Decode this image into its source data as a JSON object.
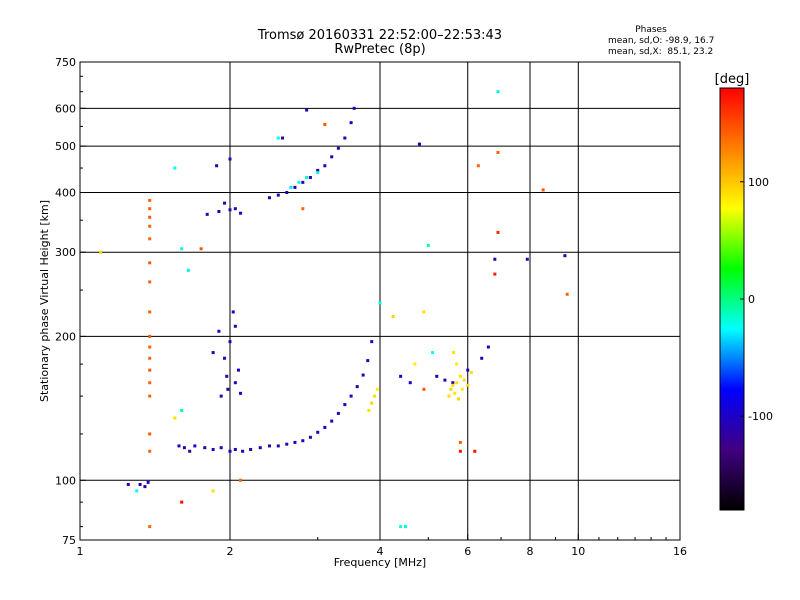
{
  "chart_data": {
    "type": "scatter",
    "title": "Tromsø 20160331 22:52:00–22:53:43",
    "subtitle": "RwPretec (8p)",
    "xlabel": "Frequency [MHz]",
    "ylabel": "Stationary phase Virtual Height [km]",
    "x_scale": "log",
    "y_scale": "log",
    "xlim": [
      1,
      16
    ],
    "ylim": [
      75,
      750
    ],
    "x_ticks": [
      1,
      2,
      4,
      6,
      8,
      10,
      16
    ],
    "y_ticks": [
      75,
      100,
      200,
      300,
      400,
      500,
      600,
      750
    ],
    "x_grid_lines": [
      2,
      4,
      6,
      8,
      10
    ],
    "y_grid_lines": [
      100,
      200,
      300,
      400,
      500,
      600
    ],
    "grid": true,
    "legend": {
      "title": "Phases",
      "lines": [
        "mean, sd,O: -98.9, 16.7",
        "mean, sd,X:  85.1, 23.2"
      ]
    },
    "colorbar": {
      "label": "[deg]",
      "range": [
        -180,
        180
      ],
      "ticks": [
        100,
        0,
        -100
      ],
      "colors": [
        "#ff0000",
        "#ff8000",
        "#ffff00",
        "#00ff00",
        "#00ffff",
        "#0000ff",
        "#400080",
        "#000000"
      ]
    },
    "series": [
      {
        "points": [
          [
            1.25,
            98,
            -110
          ],
          [
            1.32,
            98,
            -105
          ],
          [
            1.35,
            97,
            -110
          ],
          [
            1.37,
            99,
            -100
          ],
          [
            1.58,
            118,
            -110
          ],
          [
            1.62,
            117,
            -105
          ],
          [
            1.66,
            115,
            -115
          ],
          [
            1.7,
            118,
            -100
          ],
          [
            1.78,
            117,
            -110
          ],
          [
            1.85,
            116,
            -105
          ],
          [
            1.92,
            117,
            -110
          ],
          [
            2.0,
            115,
            -100
          ],
          [
            2.05,
            116,
            -110
          ],
          [
            2.12,
            115,
            -105
          ],
          [
            2.2,
            116,
            -110
          ],
          [
            2.3,
            117,
            -100
          ],
          [
            2.4,
            118,
            -110
          ],
          [
            2.5,
            118,
            -105
          ],
          [
            2.6,
            119,
            -110
          ],
          [
            2.7,
            120,
            -100
          ],
          [
            2.8,
            121,
            -110
          ],
          [
            2.9,
            123,
            -105
          ],
          [
            3.0,
            126,
            -110
          ],
          [
            3.1,
            129,
            -100
          ],
          [
            3.2,
            133,
            -110
          ],
          [
            3.3,
            138,
            -105
          ],
          [
            3.4,
            144,
            -110
          ],
          [
            3.5,
            150,
            -100
          ],
          [
            3.6,
            157,
            -110
          ],
          [
            3.7,
            166,
            -105
          ],
          [
            3.78,
            178,
            -110
          ],
          [
            3.85,
            195,
            -100
          ],
          [
            1.92,
            150,
            -110
          ],
          [
            1.98,
            155,
            -105
          ],
          [
            2.05,
            160,
            -110
          ],
          [
            2.1,
            152,
            -100
          ],
          [
            1.95,
            180,
            -110
          ],
          [
            2.0,
            195,
            -105
          ],
          [
            2.05,
            210,
            -110
          ],
          [
            1.9,
            205,
            -100
          ],
          [
            1.85,
            185,
            -110
          ],
          [
            2.08,
            170,
            -105
          ],
          [
            1.97,
            165,
            -110
          ],
          [
            2.03,
            225,
            -100
          ],
          [
            1.8,
            360,
            -110
          ],
          [
            1.9,
            365,
            -105
          ],
          [
            2.0,
            368,
            -110
          ],
          [
            2.1,
            362,
            -100
          ],
          [
            1.95,
            380,
            -110
          ],
          [
            2.05,
            370,
            -105
          ],
          [
            1.88,
            455,
            -110
          ],
          [
            2.0,
            470,
            -105
          ],
          [
            2.4,
            390,
            -110
          ],
          [
            2.5,
            395,
            -105
          ],
          [
            2.6,
            400,
            -110
          ],
          [
            2.7,
            410,
            -100
          ],
          [
            2.8,
            420,
            -110
          ],
          [
            2.9,
            430,
            -105
          ],
          [
            3.0,
            445,
            -110
          ],
          [
            3.1,
            455,
            -100
          ],
          [
            3.2,
            475,
            -110
          ],
          [
            3.3,
            495,
            -105
          ],
          [
            3.4,
            520,
            -110
          ],
          [
            3.5,
            560,
            -100
          ],
          [
            3.55,
            600,
            -110
          ],
          [
            2.85,
            595,
            -105
          ],
          [
            2.55,
            520,
            -110
          ],
          [
            5.2,
            165,
            -110
          ],
          [
            5.4,
            162,
            -105
          ],
          [
            5.6,
            160,
            -110
          ],
          [
            6.0,
            170,
            -100
          ],
          [
            6.4,
            180,
            -110
          ],
          [
            6.6,
            190,
            -105
          ],
          [
            4.4,
            165,
            -110
          ],
          [
            4.6,
            160,
            -100
          ],
          [
            6.8,
            290,
            -110
          ],
          [
            7.9,
            290,
            -105
          ],
          [
            9.4,
            295,
            -110
          ],
          [
            4.8,
            505,
            -100
          ]
        ]
      },
      {
        "points": [
          [
            1.38,
            385,
            140
          ],
          [
            1.38,
            370,
            140
          ],
          [
            1.38,
            355,
            145
          ],
          [
            1.38,
            340,
            140
          ],
          [
            1.38,
            320,
            140
          ],
          [
            1.38,
            285,
            145
          ],
          [
            1.38,
            260,
            140
          ],
          [
            1.38,
            225,
            140
          ],
          [
            1.38,
            200,
            145
          ],
          [
            1.38,
            190,
            140
          ],
          [
            1.38,
            180,
            140
          ],
          [
            1.38,
            170,
            145
          ],
          [
            1.38,
            160,
            140
          ],
          [
            1.38,
            150,
            140
          ],
          [
            1.38,
            125,
            145
          ],
          [
            1.38,
            115,
            140
          ],
          [
            1.38,
            80,
            140
          ],
          [
            1.75,
            305,
            145
          ],
          [
            2.1,
            100,
            140
          ],
          [
            2.8,
            370,
            140
          ],
          [
            3.1,
            555,
            145
          ],
          [
            6.3,
            455,
            140
          ],
          [
            6.9,
            485,
            140
          ],
          [
            8.5,
            405,
            145
          ],
          [
            9.5,
            245,
            140
          ],
          [
            5.8,
            120,
            140
          ],
          [
            4.9,
            155,
            145
          ]
        ]
      },
      {
        "points": [
          [
            3.8,
            140,
            90
          ],
          [
            3.85,
            145,
            95
          ],
          [
            3.9,
            150,
            90
          ],
          [
            3.95,
            155,
            85
          ],
          [
            5.5,
            150,
            90
          ],
          [
            5.55,
            155,
            95
          ],
          [
            5.6,
            158,
            90
          ],
          [
            5.65,
            152,
            85
          ],
          [
            5.7,
            160,
            90
          ],
          [
            5.75,
            148,
            95
          ],
          [
            5.8,
            165,
            90
          ],
          [
            5.85,
            155,
            85
          ],
          [
            5.9,
            162,
            90
          ],
          [
            6.0,
            158,
            95
          ],
          [
            6.1,
            168,
            90
          ],
          [
            5.7,
            175,
            85
          ],
          [
            5.62,
            185,
            90
          ],
          [
            4.25,
            220,
            95
          ],
          [
            4.9,
            225,
            90
          ],
          [
            4.7,
            175,
            85
          ],
          [
            1.55,
            135,
            90
          ],
          [
            1.1,
            300,
            95
          ],
          [
            1.85,
            95,
            90
          ]
        ]
      },
      {
        "points": [
          [
            2.75,
            420,
            -20
          ],
          [
            2.85,
            430,
            -10
          ],
          [
            2.65,
            410,
            -30
          ],
          [
            3.0,
            440,
            -20
          ],
          [
            6.9,
            650,
            -30
          ],
          [
            4.0,
            235,
            -20
          ],
          [
            5.0,
            310,
            -10
          ],
          [
            5.1,
            185,
            -25
          ],
          [
            4.4,
            80,
            -20
          ],
          [
            4.5,
            80,
            -15
          ],
          [
            1.6,
            305,
            -20
          ],
          [
            1.65,
            275,
            -30
          ],
          [
            1.55,
            450,
            -20
          ],
          [
            1.6,
            140,
            -10
          ],
          [
            2.5,
            520,
            -20
          ],
          [
            1.3,
            95,
            -25
          ]
        ]
      },
      {
        "points": [
          [
            6.8,
            270,
            170
          ],
          [
            6.2,
            115,
            175
          ],
          [
            6.9,
            330,
            165
          ],
          [
            5.8,
            115,
            170
          ],
          [
            1.6,
            90,
            175
          ]
        ]
      }
    ]
  }
}
